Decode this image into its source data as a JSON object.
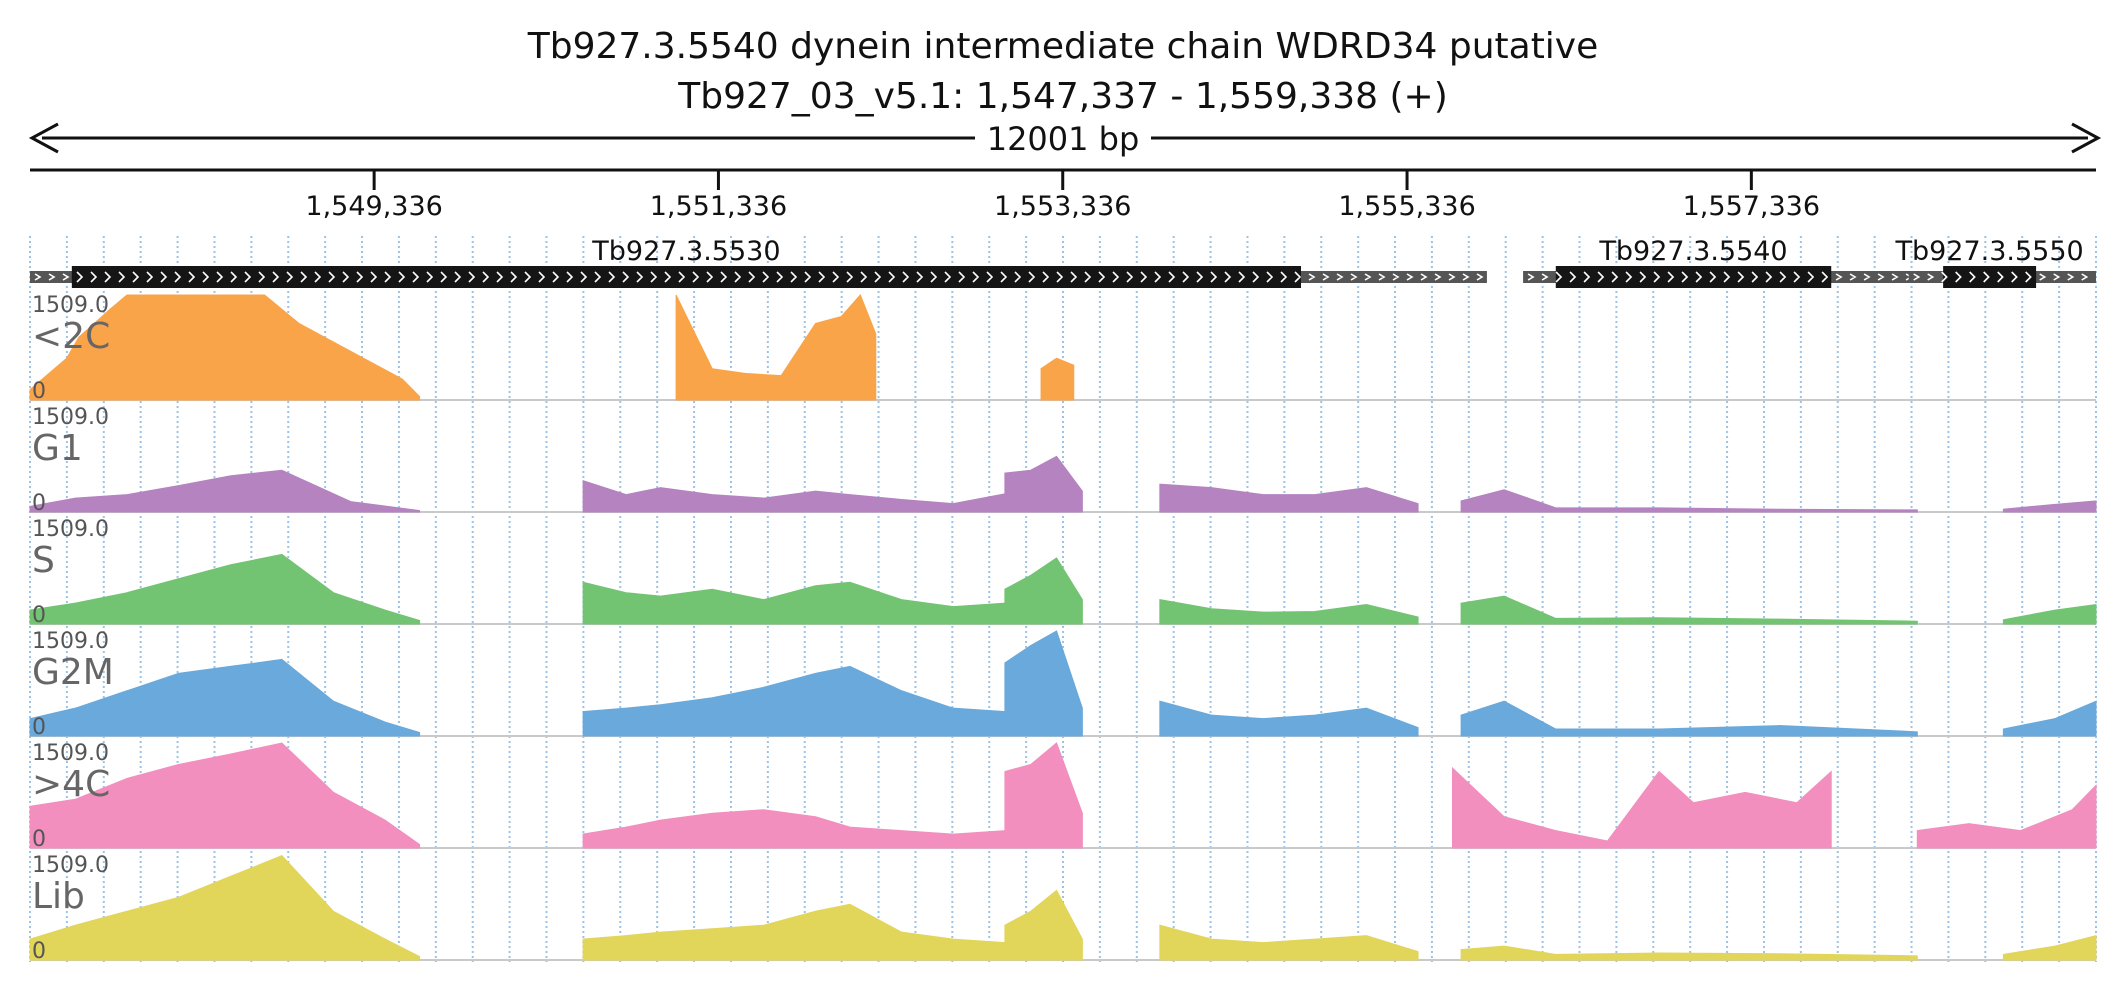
{
  "header": {
    "title": "Tb927.3.5540  dynein intermediate chain WDRD34  putative",
    "locus": "Tb927_03_v5.1: 1,547,337 - 1,559,338 (+)",
    "span_label": "12001 bp"
  },
  "chart_data": {
    "type": "area",
    "x_range": [
      1547337,
      1559338
    ],
    "ticks": [
      {
        "pos": 1549336,
        "label": "1,549,336"
      },
      {
        "pos": 1551336,
        "label": "1,551,336"
      },
      {
        "pos": 1553336,
        "label": "1,553,336"
      },
      {
        "pos": 1555336,
        "label": "1,555,336"
      },
      {
        "pos": 1557336,
        "label": "1,557,336"
      }
    ],
    "genes": [
      {
        "name": "Tb927.3.5530",
        "utr": [
          1547337,
          1555800
        ],
        "cds": [
          1547580,
          1554720
        ]
      },
      {
        "name": "Tb927.3.5540",
        "utr": [
          1556010,
          1559020
        ],
        "cds": [
          1556200,
          1557800
        ]
      },
      {
        "name": "Tb927.3.5550",
        "utr": [
          1558250,
          1559338
        ],
        "cds": [
          1558450,
          1558990
        ]
      }
    ],
    "tracks": [
      {
        "name": "<2C",
        "color": "#faa44a",
        "ymax_label": "1509.0",
        "ymin_label": "0",
        "segments": [
          {
            "x": [
              1547337,
              1547550,
              1547620,
              1547800,
              1547900,
              1548100,
              1548300,
              1548500,
              1548700,
              1548900,
              1549200,
              1549500,
              1549600
            ],
            "y": [
              150,
              600,
              900,
              1300,
              1509,
              1509,
              1509,
              1509,
              1509,
              1100,
              700,
              300,
              50
            ]
          },
          {
            "x": [
              1551090,
              1551300,
              1551500,
              1551700,
              1551900,
              1552050,
              1552160,
              1552250
            ],
            "y": [
              1509,
              450,
              380,
              350,
              1100,
              1200,
              1509,
              950
            ]
          },
          {
            "x": [
              1553210,
              1553300,
              1553400
            ],
            "y": [
              450,
              600,
              500
            ]
          }
        ]
      },
      {
        "name": "G1",
        "color": "#b483c0",
        "ymax_label": "1509.0",
        "ymin_label": "0",
        "segments": [
          {
            "x": [
              1547337,
              1547600,
              1547900,
              1548200,
              1548500,
              1548800,
              1549200,
              1549600
            ],
            "y": [
              80,
              200,
              250,
              380,
              520,
              600,
              150,
              20
            ]
          },
          {
            "x": [
              1550550,
              1550800,
              1551000,
              1551300,
              1551600,
              1551900,
              1552100,
              1552400,
              1552700,
              1553000
            ],
            "y": [
              450,
              250,
              350,
              250,
              200,
              300,
              250,
              180,
              120,
              260
            ]
          },
          {
            "x": [
              1553000,
              1553150,
              1553300,
              1553450
            ],
            "y": [
              560,
              600,
              800,
              300
            ]
          },
          {
            "x": [
              1553900,
              1554200,
              1554500,
              1554800,
              1555100,
              1555400
            ],
            "y": [
              400,
              350,
              250,
              250,
              350,
              120
            ]
          },
          {
            "x": [
              1555650,
              1555900,
              1556200,
              1556800,
              1557500,
              1558300
            ],
            "y": [
              160,
              320,
              60,
              60,
              40,
              30
            ]
          },
          {
            "x": [
              1558800,
              1559100,
              1559338
            ],
            "y": [
              40,
              110,
              160
            ]
          }
        ]
      },
      {
        "name": "S",
        "color": "#72c472",
        "ymax_label": "1509.0",
        "ymin_label": "0",
        "segments": [
          {
            "x": [
              1547337,
              1547600,
              1547900,
              1548200,
              1548500,
              1548800,
              1549100,
              1549400,
              1549600
            ],
            "y": [
              200,
              300,
              450,
              650,
              850,
              1000,
              450,
              200,
              50
            ]
          },
          {
            "x": [
              1550550,
              1550800,
              1551000,
              1551300,
              1551600,
              1551900,
              1552100,
              1552400,
              1552700,
              1553000
            ],
            "y": [
              600,
              450,
              400,
              500,
              350,
              550,
              600,
              350,
              250,
              300
            ]
          },
          {
            "x": [
              1553000,
              1553150,
              1553300,
              1553450
            ],
            "y": [
              500,
              700,
              950,
              350
            ]
          },
          {
            "x": [
              1553900,
              1554200,
              1554500,
              1554800,
              1555100,
              1555400
            ],
            "y": [
              350,
              220,
              170,
              180,
              280,
              100
            ]
          },
          {
            "x": [
              1555650,
              1555900,
              1556200,
              1556800,
              1557500,
              1558300
            ],
            "y": [
              300,
              400,
              80,
              90,
              70,
              40
            ]
          },
          {
            "x": [
              1558800,
              1559100,
              1559338
            ],
            "y": [
              60,
              200,
              280
            ]
          }
        ]
      },
      {
        "name": "G2M",
        "color": "#69a9dc",
        "ymax_label": "1509.0",
        "ymin_label": "0",
        "segments": [
          {
            "x": [
              1547337,
              1547600,
              1547900,
              1548200,
              1548500,
              1548800,
              1549100,
              1549400,
              1549600
            ],
            "y": [
              250,
              400,
              650,
              900,
              1000,
              1100,
              500,
              200,
              50
            ]
          },
          {
            "x": [
              1550550,
              1550800,
              1551000,
              1551300,
              1551600,
              1551900,
              1552100,
              1552400,
              1552700,
              1553000
            ],
            "y": [
              350,
              400,
              450,
              550,
              700,
              900,
              1000,
              650,
              400,
              350
            ]
          },
          {
            "x": [
              1553000,
              1553150,
              1553300,
              1553450
            ],
            "y": [
              1050,
              1300,
              1509,
              400
            ]
          },
          {
            "x": [
              1553900,
              1554200,
              1554500,
              1554800,
              1555100,
              1555400
            ],
            "y": [
              500,
              300,
              250,
              300,
              400,
              120
            ]
          },
          {
            "x": [
              1555650,
              1555900,
              1556200,
              1556800,
              1557500,
              1558300
            ],
            "y": [
              300,
              500,
              100,
              100,
              150,
              60
            ]
          },
          {
            "x": [
              1558800,
              1559100,
              1559338
            ],
            "y": [
              100,
              250,
              500
            ]
          }
        ]
      },
      {
        "name": ">4C",
        "color": "#f28fbe",
        "ymax_label": "1509.0",
        "ymin_label": "0",
        "segments": [
          {
            "x": [
              1547337,
              1547600,
              1547900,
              1548200,
              1548500,
              1548800,
              1549100,
              1549400,
              1549600
            ],
            "y": [
              600,
              700,
              1000,
              1200,
              1350,
              1509,
              800,
              400,
              50
            ]
          },
          {
            "x": [
              1550550,
              1550800,
              1551000,
              1551300,
              1551600,
              1551900,
              1552100,
              1552400,
              1552700,
              1553000
            ],
            "y": [
              200,
              300,
              400,
              500,
              550,
              450,
              300,
              250,
              200,
              250
            ]
          },
          {
            "x": [
              1553000,
              1553150,
              1553300,
              1553450
            ],
            "y": [
              1100,
              1200,
              1509,
              500
            ]
          },
          {
            "x": [
              1555600,
              1555900,
              1556200,
              1556500,
              1556800,
              1557000,
              1557300,
              1557600,
              1557800
            ],
            "y": [
              1150,
              450,
              250,
              100,
              1100,
              650,
              800,
              650,
              1100
            ]
          },
          {
            "x": [
              1558300,
              1558600,
              1558900,
              1559200,
              1559338
            ],
            "y": [
              250,
              350,
              250,
              550,
              900
            ]
          }
        ]
      },
      {
        "name": "Lib",
        "color": "#e1d55a",
        "ymax_label": "1509.0",
        "ymin_label": "0",
        "segments": [
          {
            "x": [
              1547337,
              1547600,
              1547900,
              1548200,
              1548500,
              1548800,
              1549100,
              1549400,
              1549600
            ],
            "y": [
              300,
              500,
              700,
              900,
              1200,
              1500,
              700,
              300,
              50
            ]
          },
          {
            "x": [
              1550550,
              1550800,
              1551000,
              1551300,
              1551600,
              1551900,
              1552100,
              1552400,
              1552700,
              1553000
            ],
            "y": [
              300,
              350,
              400,
              450,
              500,
              700,
              800,
              400,
              300,
              250
            ]
          },
          {
            "x": [
              1553000,
              1553150,
              1553300,
              1553450
            ],
            "y": [
              500,
              700,
              1000,
              300
            ]
          },
          {
            "x": [
              1553900,
              1554200,
              1554500,
              1554800,
              1555100,
              1555400
            ],
            "y": [
              500,
              300,
              250,
              300,
              350,
              120
            ]
          },
          {
            "x": [
              1555650,
              1555900,
              1556200,
              1556800,
              1557500,
              1558300
            ],
            "y": [
              150,
              200,
              80,
              100,
              90,
              60
            ]
          },
          {
            "x": [
              1558800,
              1559100,
              1559338
            ],
            "y": [
              80,
              200,
              350
            ]
          }
        ]
      }
    ]
  }
}
